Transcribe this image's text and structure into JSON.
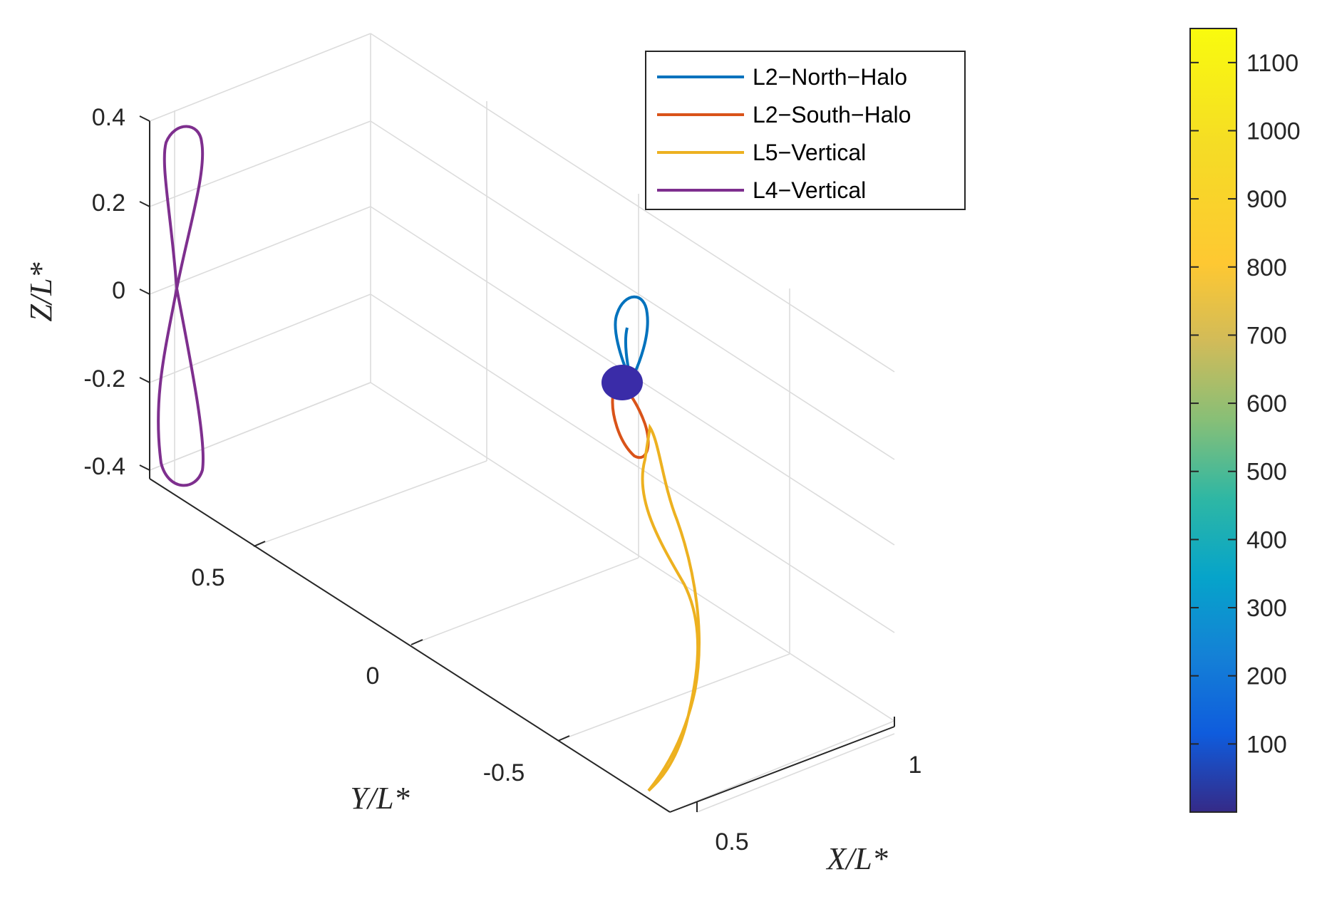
{
  "chart_data": {
    "type": "line",
    "view": "3d",
    "xlabel": "X/L*",
    "ylabel": "Y/L*",
    "zlabel": "Z/L*",
    "xticks": [
      "0.5",
      "1"
    ],
    "yticks": [
      "0.5",
      "0",
      "-0.5"
    ],
    "zticks": [
      "0.4",
      "0.2",
      "0",
      "-0.2",
      "-0.4"
    ],
    "grid": true,
    "legend_position": "top-center",
    "series": [
      {
        "name": "L2−North−Halo",
        "color": "#0072bd",
        "center": [
          1.16,
          0.0,
          -0.05
        ],
        "z_range": [
          -0.05,
          0.2
        ]
      },
      {
        "name": "L2−South−Halo",
        "color": "#d95319",
        "center": [
          1.16,
          0.0,
          -0.05
        ],
        "z_range": [
          -0.3,
          -0.05
        ]
      },
      {
        "name": "L5−Vertical",
        "color": "#edb120",
        "center": [
          0.5,
          -0.87,
          0.0
        ],
        "z_range": [
          -0.4,
          0.4
        ]
      },
      {
        "name": "L4−Vertical",
        "color": "#7e2f8e",
        "center": [
          0.5,
          0.87,
          0.0
        ],
        "z_range": [
          -0.43,
          0.42
        ]
      }
    ],
    "marker": {
      "description": "filled disc",
      "color": "#3a2ca8",
      "position": [
        1.16,
        0.0,
        -0.05
      ]
    },
    "colorbar": {
      "ticks": [
        "100",
        "200",
        "300",
        "400",
        "500",
        "600",
        "700",
        "800",
        "900",
        "1000",
        "1100"
      ],
      "range": [
        0,
        1150
      ],
      "colormap": "parula"
    }
  }
}
